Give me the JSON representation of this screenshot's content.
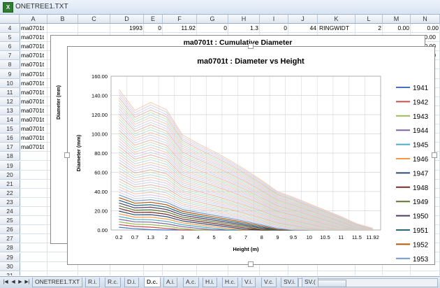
{
  "window": {
    "title": "ONETREE1.TXT",
    "icon": "excel-icon"
  },
  "columns": [
    "A",
    "B",
    "C",
    "D",
    "E",
    "F",
    "G",
    "H",
    "I",
    "J",
    "K",
    "L",
    "M",
    "N"
  ],
  "rows": [
    "4",
    "5",
    "6",
    "7",
    "8",
    "9",
    "10",
    "11",
    "12",
    "13",
    "14",
    "15",
    "16",
    "17",
    "18",
    "19",
    "20",
    "21",
    "22",
    "23",
    "24",
    "25",
    "26",
    "27",
    "28",
    "29",
    "30",
    "31"
  ],
  "row4": {
    "A": "ma0701t",
    "D": "1993",
    "E": "0",
    "F": "11.92",
    "G": "0",
    "H": "1.3",
    "I": "0",
    "J": "44",
    "K": "RINGWIDT",
    "L": "2",
    "M": "0.00",
    "N": "0.00"
  },
  "colA_values": [
    "ma0701t",
    "ma0701t",
    "ma0701t",
    "ma0701t",
    "ma0701t",
    "ma0701t",
    "ma0701t",
    "ma0701t",
    "ma0701t",
    "ma0701t",
    "ma0701t",
    "ma0701t",
    "ma0701t"
  ],
  "colN_values": [
    "0.00",
    "0.00",
    "0.00"
  ],
  "back_chart": {
    "title": "ma0701t : Cumulative Diameter",
    "ylabel": "Diameter (mm)"
  },
  "chart_data": {
    "type": "line",
    "title": "ma0701t : Diameter vs Height",
    "xlabel": "Height (m)",
    "ylabel": "Diameter (mm)",
    "categories": [
      "0.2",
      "0.7",
      "1.3",
      "2",
      "3",
      "4",
      "5",
      "6",
      "7",
      "8",
      "9",
      "9.5",
      "10",
      "10.5",
      "11",
      "11.5",
      "11.92"
    ],
    "ylim": [
      0,
      160
    ],
    "yticks": [
      "0.00",
      "20.00",
      "40.00",
      "60.00",
      "80.00",
      "100.00",
      "120.00",
      "140.00",
      "160.00"
    ],
    "grid": true,
    "legend_position": "right",
    "series": [
      {
        "name": "1941",
        "color": "#4472c4"
      },
      {
        "name": "1942",
        "color": "#c0504d"
      },
      {
        "name": "1943",
        "color": "#9bbb59"
      },
      {
        "name": "1944",
        "color": "#8064a2"
      },
      {
        "name": "1945",
        "color": "#4bacc6"
      },
      {
        "name": "1946",
        "color": "#f79646"
      },
      {
        "name": "1947",
        "color": "#2c4d75"
      },
      {
        "name": "1948",
        "color": "#772c2a"
      },
      {
        "name": "1949",
        "color": "#5f7530"
      },
      {
        "name": "1950",
        "color": "#4d3b62"
      },
      {
        "name": "1951",
        "color": "#276a7c"
      },
      {
        "name": "1952",
        "color": "#b65708"
      },
      {
        "name": "1953",
        "color": "#729aca"
      }
    ],
    "base_profile": [
      146,
      125,
      134,
      127,
      101,
      92,
      84,
      75,
      65,
      54,
      42,
      36,
      29,
      22,
      15,
      7,
      2
    ]
  },
  "sheet_tabs": [
    "ONETREE1.TXT",
    "R.i.",
    "R.c.",
    "D.i.",
    "D.c.",
    "A.i.",
    "A.c.",
    "H.i.",
    "H.c.",
    "V.i.",
    "V.c.",
    "SV.i.",
    "SV.("
  ],
  "active_tab": "D.c."
}
